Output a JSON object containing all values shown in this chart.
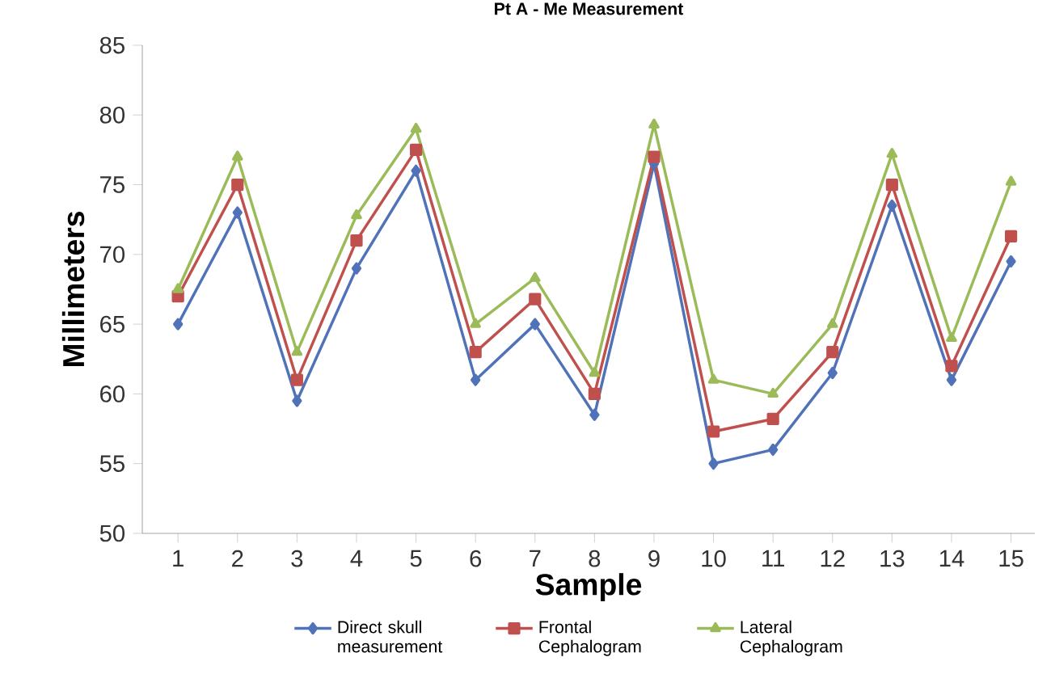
{
  "chart_data": {
    "type": "line",
    "title": "Pt A - Me Measurement",
    "xlabel": "Sample",
    "ylabel": "Millimeters",
    "categories": [
      "1",
      "2",
      "3",
      "4",
      "5",
      "6",
      "7",
      "8",
      "9",
      "10",
      "11",
      "12",
      "13",
      "14",
      "15"
    ],
    "ylim": [
      50,
      85
    ],
    "yticks": [
      50,
      55,
      60,
      65,
      70,
      75,
      80,
      85
    ],
    "grid": false,
    "legend": "bottom",
    "series": [
      {
        "name": "Direct skull measurement",
        "color": "#4f72b8",
        "marker": "diamond",
        "values": [
          65,
          73,
          59.5,
          69,
          76,
          61,
          65,
          58.5,
          76.5,
          55,
          56,
          61.5,
          73.5,
          61,
          69.5
        ]
      },
      {
        "name": "Frontal Cephalogram",
        "color": "#c0504d",
        "marker": "square",
        "values": [
          67,
          75,
          61,
          71,
          77.5,
          63,
          66.8,
          60,
          77,
          57.3,
          58.2,
          63,
          75,
          62,
          71.3
        ]
      },
      {
        "name": "Lateral Cephalogram",
        "color": "#9bbb59",
        "marker": "triangle",
        "values": [
          67.5,
          77,
          63,
          72.8,
          79,
          65,
          68.3,
          61.5,
          79.3,
          61,
          60,
          65,
          77.2,
          64,
          75.2
        ]
      }
    ]
  }
}
